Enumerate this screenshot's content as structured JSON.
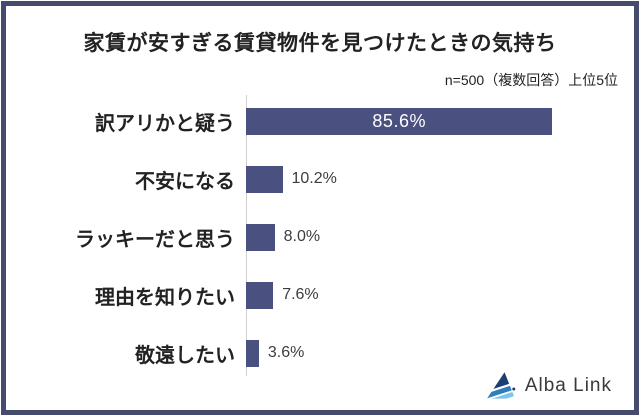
{
  "frame": {
    "border_color": "#454b6e",
    "background": "#ffffff"
  },
  "title": "家賃が安すぎる賃貸物件を見つけたときの気持ち",
  "note": "n=500（複数回答）上位5位",
  "chart_data": {
    "type": "bar",
    "orientation": "horizontal",
    "title": "家賃が安すぎる賃貸物件を見つけたときの気持ち",
    "note": "n=500（複数回答）上位5位",
    "categories": [
      "訳アリかと疑う",
      "不安になる",
      "ラッキーだと思う",
      "理由を知りたい",
      "敬遠したい"
    ],
    "values": [
      85.6,
      10.2,
      8.0,
      7.6,
      3.6
    ],
    "value_labels": [
      "85.6%",
      "10.2%",
      "8.0%",
      "7.6%",
      "3.6%"
    ],
    "unit": "%",
    "xlim": [
      0,
      100
    ],
    "grid": false,
    "legend": false,
    "bar_color": "#4a5080",
    "inside_label_color": "#ffffff",
    "outside_label_color": "#3d3d3d",
    "inside_label_threshold": 50
  },
  "logo": {
    "text": "Alba Link",
    "text_color": "#3a3a3a",
    "mark_colors": [
      "#1c3e72",
      "#2e7dbf",
      "#7cc4e8"
    ]
  }
}
